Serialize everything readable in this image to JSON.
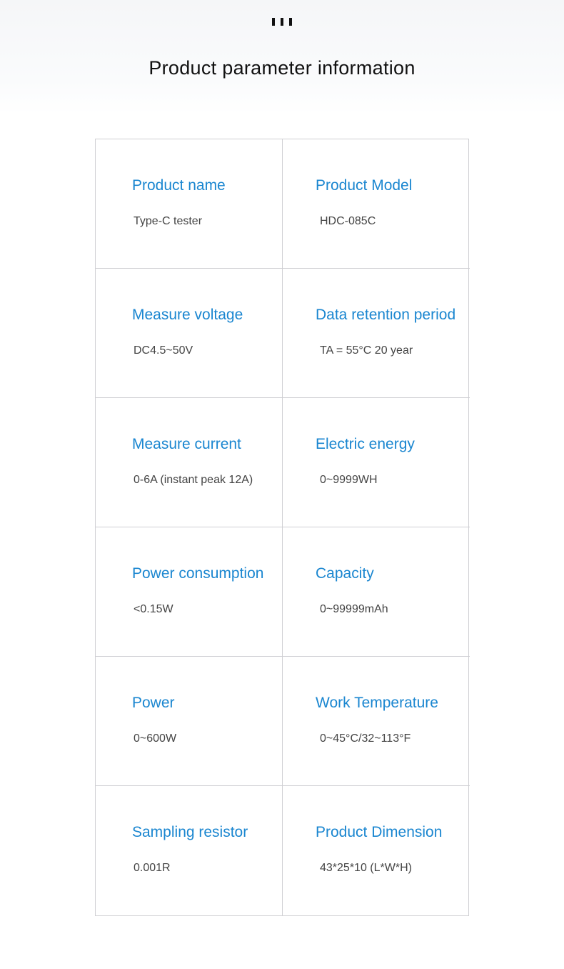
{
  "header": {
    "title": "Product parameter information"
  },
  "colors": {
    "label": "#1a86d0",
    "value": "#444444",
    "border": "#cfcfd3"
  },
  "params": [
    {
      "label": "Product name",
      "value": "Type-C tester"
    },
    {
      "label": "Product Model",
      "value": "HDC-085C"
    },
    {
      "label": "Measure voltage",
      "value": "DC4.5~50V"
    },
    {
      "label": "Data retention period",
      "value": "TA = 55°C 20 year"
    },
    {
      "label": "Measure current",
      "value": "0-6A (instant peak 12A)"
    },
    {
      "label": "Electric energy",
      "value": "0~9999WH"
    },
    {
      "label": "Power consumption",
      "value": "<0.15W"
    },
    {
      "label": "Capacity",
      "value": "0~99999mAh"
    },
    {
      "label": "Power",
      "value": "0~600W"
    },
    {
      "label": "Work Temperature",
      "value": "0~45°C/32~113°F"
    },
    {
      "label": "Sampling resistor",
      "value": "0.001R"
    },
    {
      "label": "Product Dimension",
      "value": "43*25*10 (L*W*H)"
    }
  ]
}
